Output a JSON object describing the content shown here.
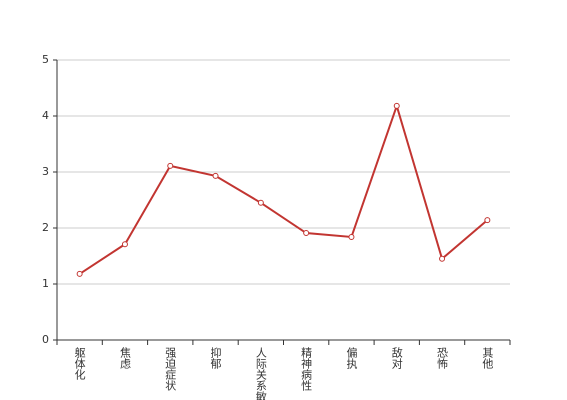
{
  "chart_data": {
    "type": "line",
    "categories": [
      "躯体化",
      "焦虑",
      "强迫症状",
      "抑郁",
      "人际关系敏感",
      "精神病性",
      "偏执",
      "敌对",
      "恐怖",
      "其他"
    ],
    "series": [
      {
        "color": "#c23531",
        "values": [
          1.18,
          1.71,
          3.11,
          2.93,
          2.45,
          1.91,
          1.84,
          4.18,
          1.45,
          2.14
        ]
      }
    ],
    "ylim": [
      0,
      5
    ],
    "yticks": [
      0,
      1,
      2,
      3,
      4,
      5
    ],
    "grid": true
  }
}
